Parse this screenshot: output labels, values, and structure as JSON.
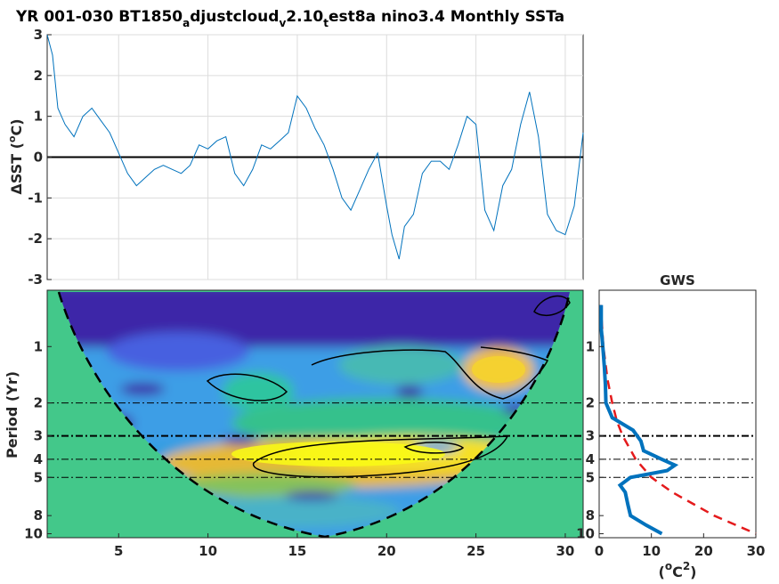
{
  "title": {
    "prefix": "YR 001-030 BT1850",
    "sub1": "a",
    "mid1": "djustcloud",
    "sub2": "v",
    "mid2": "2.10",
    "sub3": "t",
    "suffix": "est8a nino3.4 Monthly SSTa"
  },
  "colors": {
    "series": "#0072BD",
    "zero_line": "#000000",
    "grid": "#dcdcdc",
    "wavelet_low": "#3e26a8",
    "wavelet_mid": "#2ec4a0",
    "wavelet_high": "#f9fb15",
    "coi_fill": "#43c88a",
    "gws_line": "#0072BD",
    "significance": "#e41a1c"
  },
  "chart_data": [
    {
      "type": "line",
      "panel": "time-series",
      "ylabel_prefix": "ΔSST (",
      "ylabel_sup": "o",
      "ylabel_suffix": "C)",
      "xlim": [
        1,
        31
      ],
      "ylim": [
        -3,
        3
      ],
      "yticks": [
        "3",
        "2",
        "1",
        "0",
        "-1",
        "-2",
        "-3"
      ],
      "grid": true,
      "x": [
        1.0,
        1.3,
        1.6,
        2.0,
        2.5,
        3.0,
        3.5,
        4.0,
        4.5,
        5.0,
        5.5,
        6.0,
        6.5,
        7.0,
        7.5,
        8.0,
        8.5,
        9.0,
        9.5,
        10.0,
        10.5,
        11.0,
        11.5,
        12.0,
        12.5,
        13.0,
        13.5,
        14.0,
        14.5,
        15.0,
        15.5,
        16.0,
        16.5,
        17.0,
        17.5,
        18.0,
        18.5,
        19.0,
        19.5,
        20.0,
        20.3,
        20.7,
        21.0,
        21.5,
        22.0,
        22.5,
        23.0,
        23.5,
        24.0,
        24.5,
        25.0,
        25.5,
        26.0,
        26.5,
        27.0,
        27.5,
        28.0,
        28.5,
        29.0,
        29.5,
        30.0,
        30.5,
        31.0
      ],
      "y": [
        3.0,
        2.5,
        1.2,
        0.8,
        0.5,
        1.0,
        1.2,
        0.9,
        0.6,
        0.1,
        -0.4,
        -0.7,
        -0.5,
        -0.3,
        -0.2,
        -0.3,
        -0.4,
        -0.2,
        0.3,
        0.2,
        0.4,
        0.5,
        -0.4,
        -0.7,
        -0.3,
        0.3,
        0.2,
        0.4,
        0.6,
        1.5,
        1.2,
        0.7,
        0.3,
        -0.3,
        -1.0,
        -1.3,
        -0.8,
        -0.3,
        0.1,
        -1.2,
        -1.9,
        -2.5,
        -1.7,
        -1.4,
        -0.4,
        -0.1,
        -0.1,
        -0.3,
        0.3,
        1.0,
        0.8,
        -1.3,
        -1.8,
        -0.7,
        -0.3,
        0.8,
        1.6,
        0.5,
        -1.4,
        -1.8,
        -1.9,
        -1.2,
        0.6
      ],
      "zero_line": 0
    },
    {
      "type": "heatmap",
      "panel": "wavelet-power",
      "ylabel": "Period (Yr)",
      "xlim": [
        1,
        31
      ],
      "xticks": [
        "5",
        "10",
        "15",
        "20",
        "25",
        "30"
      ],
      "yticks": [
        "1",
        "2",
        "3",
        "4",
        "5",
        "8",
        "10"
      ],
      "ytick_values": [
        1,
        2,
        3,
        4,
        5,
        8,
        10
      ],
      "yscale": "log",
      "ylim": [
        0.5,
        10.5
      ],
      "colormap": "parula",
      "power_peak_period_yr": 4.5,
      "power_peak_time_range": [
        16,
        26
      ],
      "significance_levels": [
        2,
        3,
        4,
        5
      ],
      "coi": "dashed black"
    },
    {
      "type": "line",
      "panel": "global-wavelet-spectrum",
      "title": "GWS",
      "xlabel_prefix": "(",
      "xlabel_sup1": "o",
      "xlabel_mid": "C",
      "xlabel_sup2": "2",
      "xlabel_suffix": ")",
      "xlim": [
        0,
        30
      ],
      "xticks": [
        "0",
        "10",
        "20",
        "30"
      ],
      "yticks": [
        "1",
        "2",
        "3",
        "4",
        "5",
        "8",
        "10"
      ],
      "series": [
        {
          "values_period": [
            0.6,
            0.8,
            1.0,
            1.3,
            1.6,
            2.0,
            2.4,
            2.8,
            3.2,
            3.6,
            4.0,
            4.3,
            4.6,
            5.0,
            5.5,
            6.0,
            7.0,
            8.0,
            9.0,
            10.0
          ],
          "values_power": [
            0.4,
            0.4,
            0.7,
            1.0,
            1.2,
            1.3,
            2.5,
            6.5,
            8.0,
            8.5,
            12.0,
            14.5,
            13.0,
            6.0,
            4.0,
            5.0,
            5.5,
            6.0,
            9.0,
            12.0
          ]
        },
        {
          "values_period": [
            0.6,
            1.0,
            1.5,
            2.0,
            2.5,
            3.0,
            4.0,
            5.0,
            6.0,
            8.0,
            10.0
          ],
          "values_power": [
            0.3,
            0.8,
            1.6,
            2.5,
            3.4,
            4.5,
            7.0,
            10.0,
            14.0,
            22.0,
            30.0
          ]
        }
      ]
    }
  ]
}
